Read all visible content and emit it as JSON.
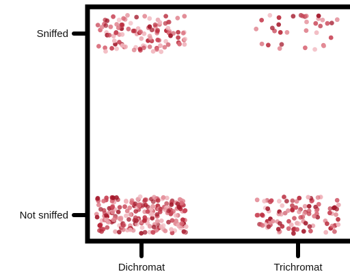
{
  "chart_data": {
    "type": "scatter",
    "title": "",
    "xlabel": "",
    "ylabel": "",
    "x_categories": [
      "Dichromat",
      "Trichromat"
    ],
    "y_categories": [
      "Not sniffed",
      "Sniffed"
    ],
    "grid": false,
    "legend": "none",
    "jitter": true,
    "groups": [
      {
        "x": "Dichromat",
        "y": "Sniffed",
        "approx_count": 110
      },
      {
        "x": "Trichromat",
        "y": "Sniffed",
        "approx_count": 34
      },
      {
        "x": "Dichromat",
        "y": "Not sniffed",
        "approx_count": 230
      },
      {
        "x": "Trichromat",
        "y": "Not sniffed",
        "approx_count": 105
      }
    ],
    "point_colors": [
      "#b8283a",
      "#c94658",
      "#d96a78",
      "#e38d98",
      "#f0b3bb",
      "#a3182b"
    ]
  }
}
